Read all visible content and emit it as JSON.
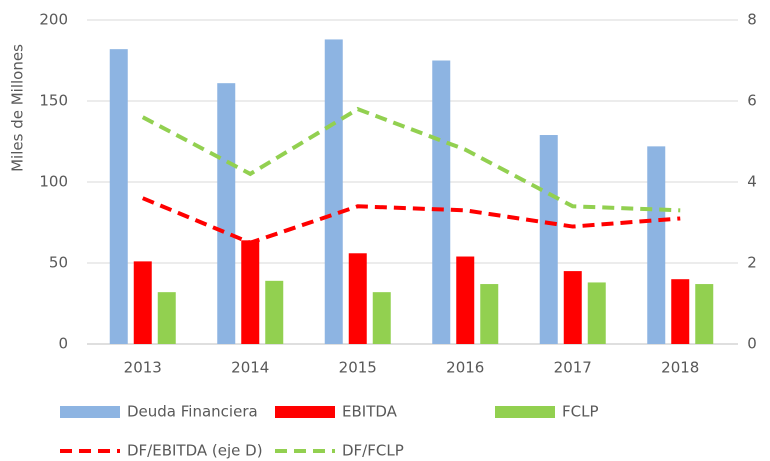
{
  "chart_data": {
    "type": "bar",
    "y_label": "Miles de Millones",
    "categories": [
      "2013",
      "2014",
      "2015",
      "2016",
      "2017",
      "2018"
    ],
    "series": [
      {
        "name": "Deuda Financiera",
        "type": "bar",
        "color": "#8db4e2",
        "values": [
          182,
          161,
          188,
          175,
          129,
          122
        ]
      },
      {
        "name": "EBITDA",
        "type": "bar",
        "color": "#ff0000",
        "values": [
          51,
          64,
          56,
          54,
          45,
          40
        ]
      },
      {
        "name": "FCLP",
        "type": "bar",
        "color": "#92d050",
        "values": [
          32,
          39,
          32,
          37,
          38,
          37
        ]
      },
      {
        "name": "DF/EBITDA (eje D)",
        "type": "line",
        "dashed": true,
        "axis": "y2",
        "color": "#ff0000",
        "values": [
          3.6,
          2.5,
          3.4,
          3.3,
          2.9,
          3.1
        ]
      },
      {
        "name": "DF/FCLP",
        "type": "line",
        "dashed": true,
        "axis": "y2",
        "color": "#92d050",
        "values": [
          5.6,
          4.2,
          5.8,
          4.8,
          3.4,
          3.3
        ]
      }
    ],
    "ylim": [
      0,
      200
    ],
    "yticks": [
      0,
      50,
      100,
      150,
      200
    ],
    "y2lim": [
      0,
      8
    ],
    "y2ticks": [
      0,
      2,
      4,
      6,
      8
    ],
    "grid": true,
    "legend": "bottom"
  }
}
